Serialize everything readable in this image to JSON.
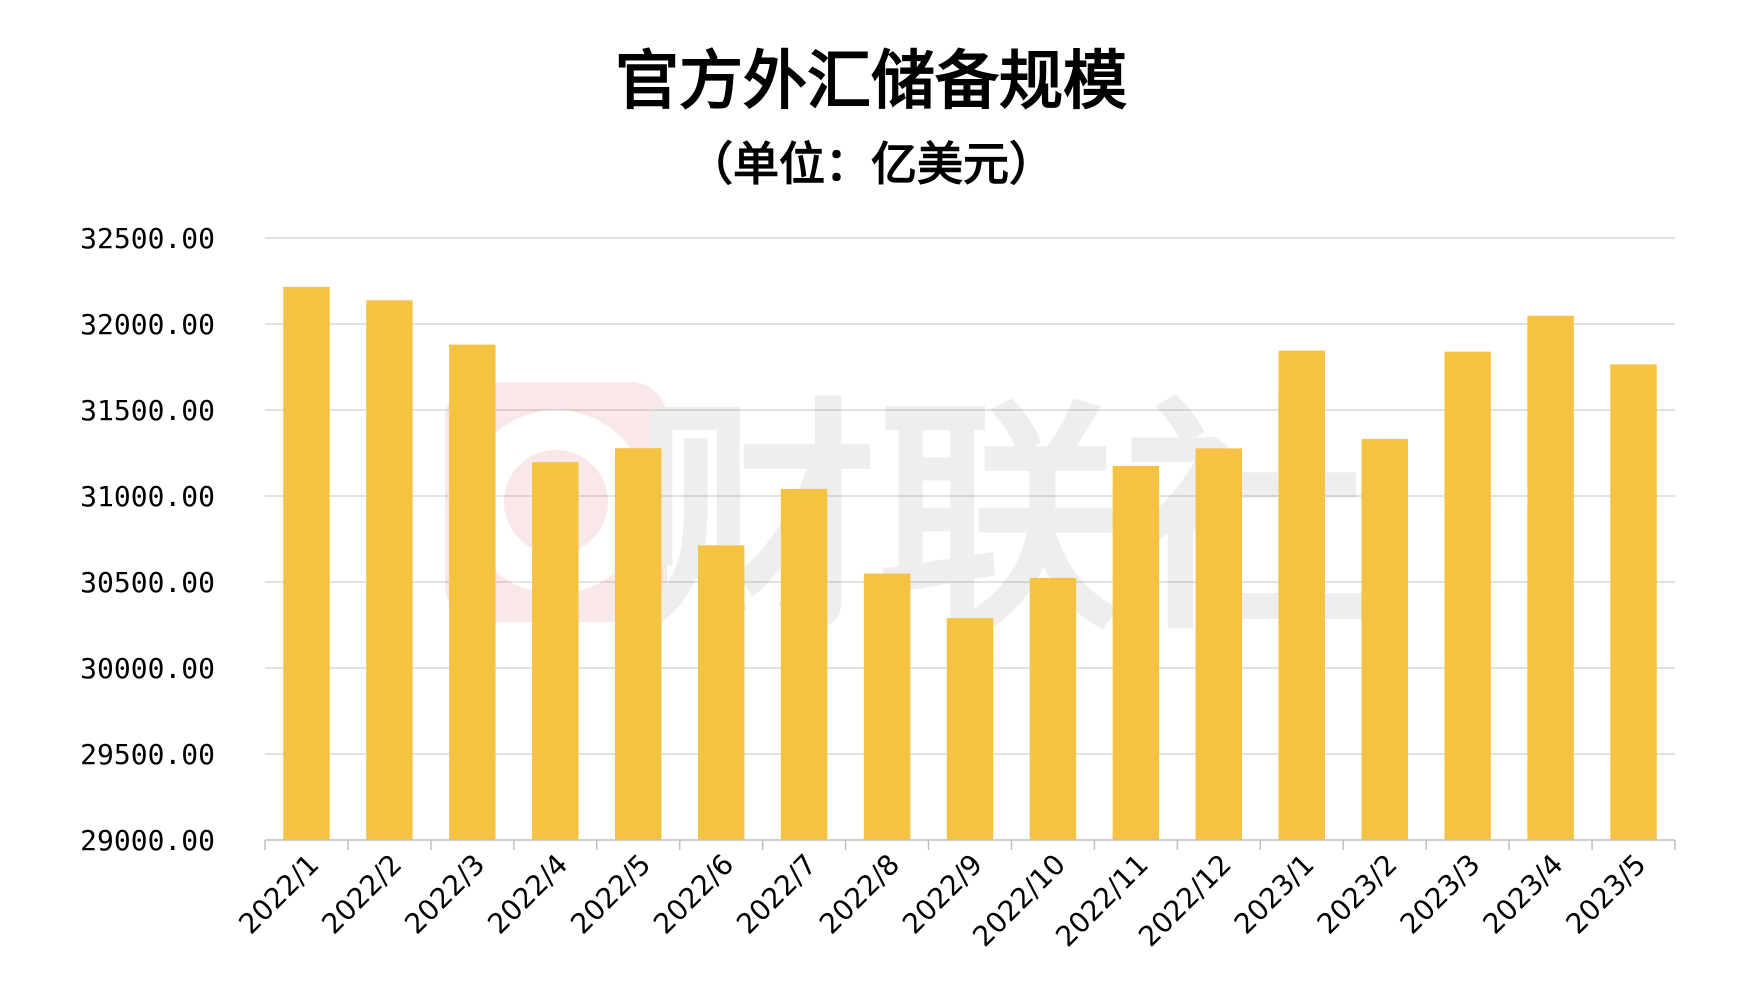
{
  "chart_data": {
    "type": "bar",
    "title": "官方外汇储备规模",
    "subtitle": "（单位：亿美元）",
    "xlabel": "",
    "ylabel": "",
    "categories": [
      "2022/1",
      "2022/2",
      "2022/3",
      "2022/4",
      "2022/5",
      "2022/6",
      "2022/7",
      "2022/8",
      "2022/9",
      "2022/10",
      "2022/11",
      "2022/12",
      "2023/1",
      "2023/2",
      "2023/3",
      "2023/4",
      "2023/5"
    ],
    "series": [
      {
        "values": [
          32216,
          32138,
          31880,
          31197,
          31278,
          30713,
          31041,
          30549,
          30290,
          30524,
          31175,
          31277,
          31845,
          31332,
          31839,
          32048,
          31765
        ]
      }
    ],
    "ylim": [
      29000,
      32500
    ],
    "yticks": [
      "29000.00",
      "29500.00",
      "30000.00",
      "30500.00",
      "31000.00",
      "31500.00",
      "32000.00",
      "32500.00"
    ],
    "grid": true,
    "legend": "none",
    "colors": {
      "bar": "#F5C242",
      "grid": "#D9D9D9",
      "axis": "#BFBFBF",
      "text": "#000000"
    }
  },
  "watermark": {
    "text": "财联社",
    "logo": "cls-logo-icon"
  }
}
